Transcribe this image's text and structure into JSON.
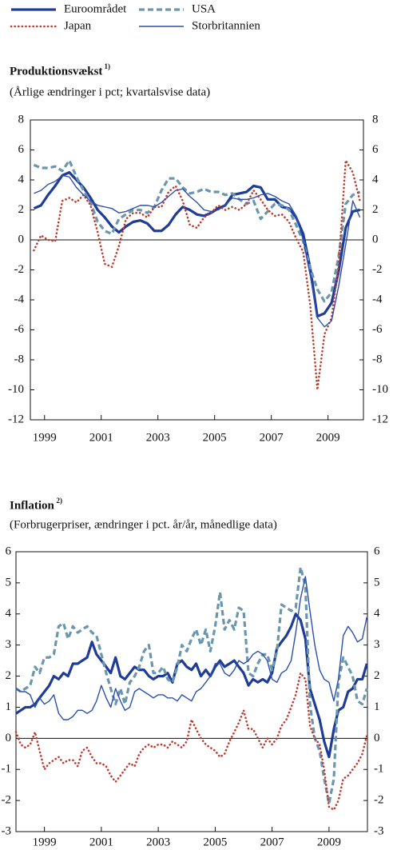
{
  "chart_data": [
    {
      "type": "line",
      "title": "Produktionsvækst",
      "title_footnote": "1)",
      "subtitle": "(Årlige ændringer i pct; kvartalsvise data)",
      "xlim": [
        1999,
        2010.75
      ],
      "ylim": [
        -12,
        8
      ],
      "yticks": [
        -12,
        -10,
        -8,
        -6,
        -4,
        -2,
        0,
        2,
        4,
        6,
        8
      ],
      "xticks": [
        {
          "value": 1999.5,
          "label": "1999"
        },
        {
          "value": 2001.5,
          "label": "2001"
        },
        {
          "value": 2003.5,
          "label": "2003"
        },
        {
          "value": 2005.5,
          "label": "2005"
        },
        {
          "value": 2007.5,
          "label": "2007"
        },
        {
          "value": 2009.5,
          "label": "2009"
        }
      ],
      "x": [
        1999.125,
        1999.375,
        1999.625,
        1999.875,
        2000.125,
        2000.375,
        2000.625,
        2000.875,
        2001.125,
        2001.375,
        2001.625,
        2001.875,
        2002.125,
        2002.375,
        2002.625,
        2002.875,
        2003.125,
        2003.375,
        2003.625,
        2003.875,
        2004.125,
        2004.375,
        2004.625,
        2004.875,
        2005.125,
        2005.375,
        2005.625,
        2005.875,
        2006.125,
        2006.375,
        2006.625,
        2006.875,
        2007.125,
        2007.375,
        2007.625,
        2007.875,
        2008.125,
        2008.375,
        2008.625,
        2008.875,
        2009.125,
        2009.375,
        2009.625,
        2009.875,
        2010.125,
        2010.375,
        2010.625
      ],
      "series": [
        {
          "name": "Euroområdet",
          "color": "#1f3c96",
          "style": "solid",
          "width": 3.2,
          "values": [
            2.1,
            2.3,
            3.0,
            3.6,
            4.3,
            4.5,
            4.0,
            3.5,
            2.8,
            2.0,
            1.5,
            0.9,
            0.5,
            0.9,
            1.2,
            1.3,
            1.1,
            0.6,
            0.6,
            1.0,
            1.7,
            2.2,
            2.0,
            1.7,
            1.6,
            1.8,
            2.1,
            2.3,
            3.0,
            3.1,
            3.2,
            3.6,
            3.5,
            2.7,
            2.7,
            2.2,
            2.1,
            1.5,
            0.4,
            -1.9,
            -5.1,
            -4.9,
            -4.2,
            -2.1,
            0.8,
            1.9,
            2.0
          ]
        },
        {
          "name": "USA",
          "color": "#6a97ad",
          "style": "dashed",
          "width": 3.2,
          "values": [
            5.0,
            4.8,
            4.8,
            4.9,
            4.6,
            5.3,
            4.2,
            3.3,
            2.5,
            1.2,
            0.6,
            0.4,
            1.4,
            1.7,
            2.0,
            2.0,
            1.8,
            2.2,
            3.3,
            4.1,
            4.1,
            3.5,
            3.1,
            3.2,
            3.4,
            3.2,
            3.2,
            3.0,
            3.1,
            2.7,
            2.4,
            2.6,
            1.4,
            1.9,
            2.4,
            2.3,
            2.0,
            1.0,
            -0.1,
            -1.9,
            -3.3,
            -4.1,
            -3.5,
            -1.1,
            2.4,
            3.0,
            3.2
          ]
        },
        {
          "name": "Japan",
          "color": "#c0392b",
          "style": "dotted",
          "width": 2.6,
          "values": [
            -0.7,
            0.3,
            0.0,
            -0.1,
            2.6,
            2.8,
            2.5,
            3.0,
            2.3,
            0.5,
            -1.6,
            -1.8,
            -0.4,
            1.4,
            1.8,
            1.8,
            1.5,
            2.2,
            2.2,
            3.2,
            3.6,
            2.6,
            1.0,
            0.8,
            1.5,
            1.8,
            2.3,
            2.0,
            2.2,
            2.0,
            2.4,
            3.3,
            2.7,
            2.0,
            1.6,
            1.7,
            1.2,
            0.1,
            -0.8,
            -4.4,
            -10.0,
            -6.3,
            -5.2,
            -1.7,
            5.3,
            4.5,
            2.6
          ]
        },
        {
          "name": "Storbritannien",
          "color": "#2b4fae",
          "style": "solid",
          "width": 1.4,
          "values": [
            3.1,
            3.3,
            3.7,
            3.9,
            4.3,
            4.2,
            3.5,
            3.0,
            2.6,
            2.3,
            2.2,
            2.1,
            1.8,
            1.9,
            2.1,
            2.3,
            2.3,
            2.2,
            2.5,
            2.9,
            3.3,
            3.4,
            2.9,
            2.5,
            2.0,
            1.9,
            2.0,
            2.3,
            2.8,
            2.7,
            2.7,
            2.8,
            3.0,
            3.1,
            2.9,
            2.6,
            2.4,
            1.6,
            0.0,
            -2.4,
            -5.2,
            -5.8,
            -5.4,
            -3.1,
            -0.3,
            2.6,
            1.5
          ]
        }
      ]
    },
    {
      "type": "line",
      "title": "Inflation",
      "title_footnote": "2)",
      "subtitle": "(Forbrugerpriser, ændringer i pct. år/år, månedlige data)",
      "xlim": [
        1998.5,
        2010.85
      ],
      "ylim": [
        -3,
        6
      ],
      "yticks": [
        -3,
        -2,
        -1,
        0,
        1,
        2,
        3,
        4,
        5,
        6
      ],
      "xticks": [
        {
          "value": 1999.5,
          "label": "1999"
        },
        {
          "value": 2001.5,
          "label": "2001"
        },
        {
          "value": 2003.5,
          "label": "2003"
        },
        {
          "value": 2005.5,
          "label": "2005"
        },
        {
          "value": 2007.5,
          "label": "2007"
        },
        {
          "value": 2009.5,
          "label": "2009"
        }
      ],
      "x": [
        1998.5,
        1998.67,
        1998.83,
        1999,
        1999.17,
        1999.33,
        1999.5,
        1999.67,
        1999.83,
        2000,
        2000.17,
        2000.33,
        2000.5,
        2000.67,
        2000.83,
        2001,
        2001.17,
        2001.33,
        2001.5,
        2001.67,
        2001.83,
        2002,
        2002.17,
        2002.33,
        2002.5,
        2002.67,
        2002.83,
        2003,
        2003.17,
        2003.33,
        2003.5,
        2003.67,
        2003.83,
        2004,
        2004.17,
        2004.33,
        2004.5,
        2004.67,
        2004.83,
        2005,
        2005.17,
        2005.33,
        2005.5,
        2005.67,
        2005.83,
        2006,
        2006.17,
        2006.33,
        2006.5,
        2006.67,
        2006.83,
        2007,
        2007.17,
        2007.33,
        2007.5,
        2007.67,
        2007.83,
        2008,
        2008.17,
        2008.33,
        2008.5,
        2008.67,
        2008.83,
        2009,
        2009.17,
        2009.33,
        2009.5,
        2009.67,
        2009.83,
        2010,
        2010.17,
        2010.33,
        2010.5,
        2010.67,
        2010.83
      ],
      "series": [
        {
          "name": "Euroområdet",
          "color": "#1f3c96",
          "style": "solid",
          "width": 3.2,
          "values": [
            0.8,
            0.9,
            1.0,
            1.0,
            1.1,
            1.3,
            1.5,
            1.7,
            2.0,
            1.9,
            2.1,
            2.0,
            2.4,
            2.4,
            2.5,
            2.6,
            3.1,
            2.7,
            2.5,
            2.3,
            2.1,
            2.6,
            2.0,
            1.9,
            2.1,
            2.3,
            2.2,
            2.2,
            2.0,
            1.9,
            2.0,
            2.0,
            2.1,
            1.8,
            2.4,
            2.5,
            2.3,
            2.2,
            2.4,
            2.0,
            2.2,
            2.0,
            2.3,
            2.5,
            2.3,
            2.4,
            2.5,
            2.3,
            2.1,
            1.7,
            1.9,
            1.8,
            1.9,
            1.8,
            2.1,
            2.9,
            3.1,
            3.3,
            3.6,
            4.0,
            3.8,
            3.2,
            1.6,
            1.1,
            0.6,
            -0.1,
            -0.6,
            0.3,
            0.9,
            1.0,
            1.5,
            1.6,
            1.9,
            1.9,
            2.4
          ]
        },
        {
          "name": "USA",
          "color": "#6a97ad",
          "style": "dashed",
          "width": 3.2,
          "values": [
            1.6,
            1.5,
            1.6,
            1.7,
            2.3,
            2.1,
            2.6,
            2.6,
            2.7,
            3.6,
            3.7,
            3.2,
            3.6,
            3.4,
            3.5,
            3.6,
            3.4,
            3.3,
            2.7,
            2.1,
            1.6,
            1.1,
            1.6,
            1.1,
            1.8,
            2.0,
            2.3,
            2.8,
            3.0,
            2.1,
            2.1,
            2.3,
            1.9,
            1.8,
            2.3,
            3.0,
            2.8,
            3.2,
            3.5,
            3.0,
            3.5,
            2.8,
            3.6,
            4.7,
            3.5,
            3.8,
            3.5,
            4.2,
            4.1,
            2.1,
            2.0,
            2.4,
            2.7,
            2.7,
            2.2,
            2.8,
            4.3,
            4.2,
            4.1,
            4.2,
            5.5,
            4.9,
            1.1,
            0.0,
            -0.4,
            -1.3,
            -2.1,
            -1.3,
            1.8,
            2.6,
            2.3,
            2.0,
            1.2,
            1.1,
            1.6
          ]
        },
        {
          "name": "Japan",
          "color": "#c0392b",
          "style": "dotted",
          "width": 2.6,
          "values": [
            0.2,
            -0.2,
            -0.3,
            -0.2,
            0.2,
            -0.4,
            -1.0,
            -0.8,
            -0.7,
            -0.6,
            -0.8,
            -0.7,
            -0.7,
            -0.9,
            -0.4,
            -0.3,
            -0.6,
            -0.8,
            -0.8,
            -0.9,
            -1.2,
            -1.4,
            -1.2,
            -1.0,
            -0.8,
            -0.9,
            -0.5,
            -0.3,
            -0.2,
            -0.3,
            -0.2,
            -0.2,
            -0.3,
            -0.1,
            -0.2,
            -0.3,
            -0.1,
            0.6,
            0.3,
            0.0,
            -0.2,
            -0.3,
            -0.4,
            -0.6,
            -0.5,
            -0.1,
            0.2,
            0.5,
            0.9,
            0.3,
            0.3,
            0.0,
            -0.3,
            0.0,
            -0.2,
            0.0,
            0.4,
            0.6,
            1.0,
            1.4,
            2.1,
            1.9,
            0.4,
            0.0,
            -0.2,
            -1.0,
            -2.2,
            -2.3,
            -2.0,
            -1.3,
            -1.2,
            -1.0,
            -0.8,
            -0.5,
            0.1
          ]
        },
        {
          "name": "Storbritannien",
          "color": "#2b4fae",
          "style": "solid",
          "width": 1.4,
          "values": [
            1.6,
            1.5,
            1.5,
            1.4,
            1.0,
            1.3,
            1.1,
            1.2,
            1.4,
            0.8,
            0.6,
            0.6,
            0.7,
            0.9,
            0.9,
            0.8,
            0.9,
            1.2,
            1.7,
            1.3,
            1.0,
            1.6,
            1.2,
            0.9,
            1.0,
            1.5,
            1.6,
            1.5,
            1.4,
            1.3,
            1.4,
            1.4,
            1.3,
            1.3,
            1.2,
            1.4,
            1.3,
            1.2,
            1.5,
            1.6,
            1.8,
            2.0,
            2.4,
            2.4,
            2.1,
            2.0,
            2.2,
            2.5,
            2.4,
            2.5,
            2.7,
            2.8,
            2.7,
            2.5,
            1.9,
            1.8,
            2.1,
            2.2,
            2.5,
            3.4,
            4.5,
            5.2,
            4.1,
            3.0,
            2.2,
            1.9,
            1.8,
            1.2,
            1.9,
            3.3,
            3.6,
            3.4,
            3.1,
            3.2,
            3.9
          ]
        }
      ]
    }
  ]
}
